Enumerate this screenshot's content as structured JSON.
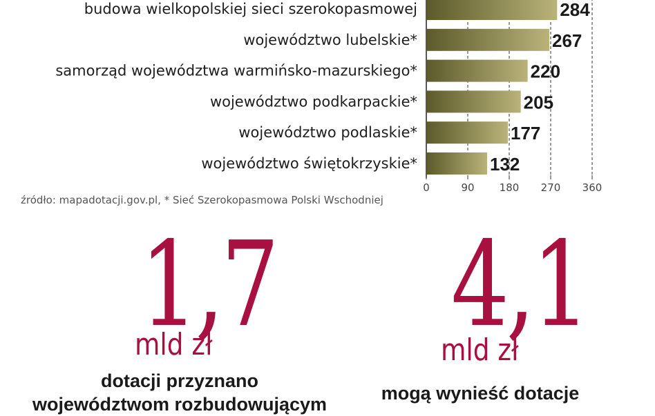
{
  "colors": {
    "accent": "#a8103f",
    "bar_light": "#b9b37a",
    "bar_dark": "#5c5a2b"
  },
  "chart_data": {
    "type": "bar",
    "orientation": "horizontal",
    "categories": [
      "budowa wielkopolskiej sieci szerokopasmowej",
      "województwo lubelskie*",
      "samorząd województwa warmińsko-mazurskiego*",
      "województwo podkarpackie*",
      "województwo podlaskie*",
      "województwo świętokrzyskie*"
    ],
    "values": [
      284,
      267,
      220,
      205,
      177,
      132
    ],
    "value_labels": [
      "284",
      "267",
      "220",
      "205",
      "177",
      "132"
    ],
    "xlim": [
      0,
      360
    ],
    "xticks": [
      "0",
      "90",
      "180",
      "270",
      "360"
    ],
    "grid": true
  },
  "source": "źródło: mapadotacji.gov.pl, * Sieć Szerokopasmowa Polski Wschodniej",
  "stats": [
    {
      "number": "1,7",
      "unit": "mld zł",
      "desc_line1": "dotacji przyznano",
      "desc_line2": "województwom rozbudowującym"
    },
    {
      "number": "4,1",
      "unit": "mld zł",
      "desc_line1": "mogą wynieść dotacje"
    }
  ]
}
